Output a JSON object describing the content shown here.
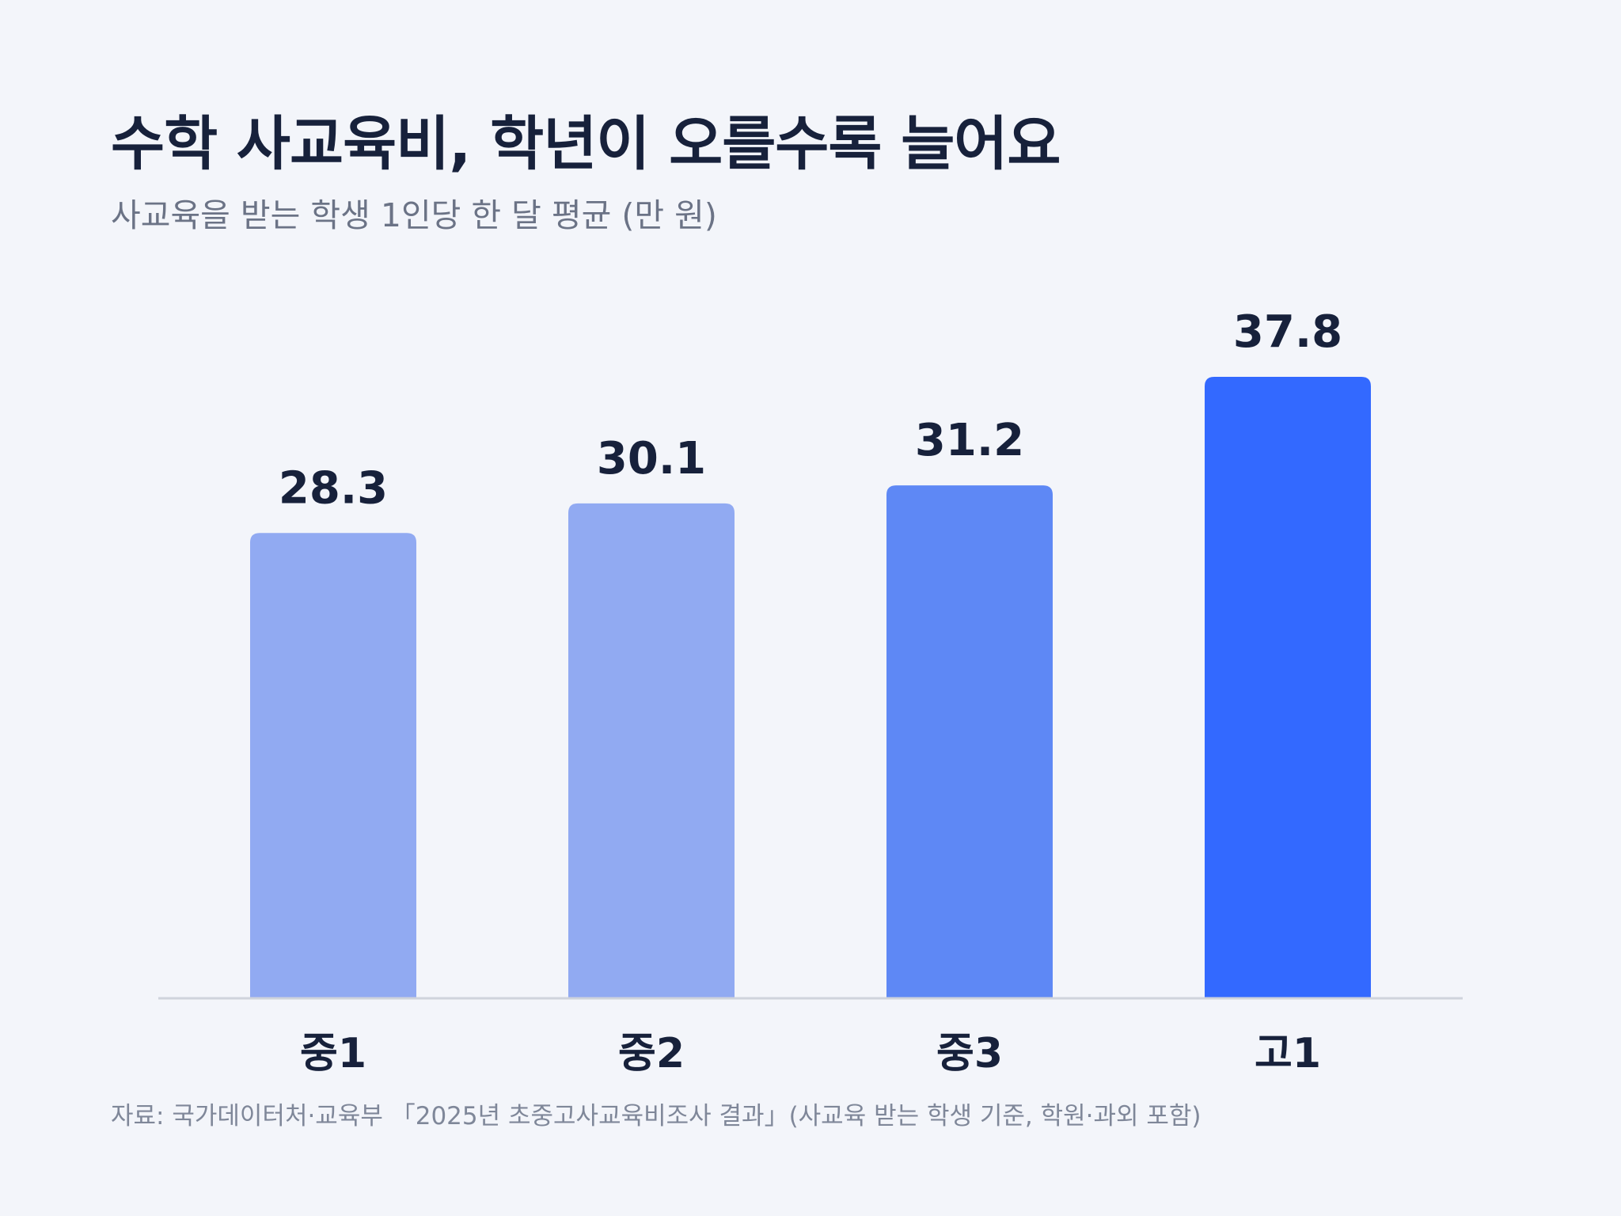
{
  "chart_data": {
    "type": "bar",
    "title": "수학 사교육비, 학년이 오를수록 늘어요",
    "subtitle": "사교육을 받는 학생 1인당 한 달 평균 (만 원)",
    "categories": [
      "중1",
      "중2",
      "중3",
      "고1"
    ],
    "values": [
      28.3,
      30.1,
      31.2,
      37.8
    ],
    "value_labels": [
      "28.3",
      "30.1",
      "31.2",
      "37.8"
    ],
    "colors": [
      "#91aaf2",
      "#91aaf2",
      "#5e88f5",
      "#3369ff"
    ],
    "ylim": [
      0,
      37.8
    ],
    "grid": false,
    "legend": "none",
    "source": "자료: 국가데이터처·교육부 「2025년 초중고사교육비조사 결과」(사교육 받는 학생 기준, 학원·과외 포함)"
  },
  "colors": {
    "background": "#f3f5fa",
    "text": "#17213b",
    "muted": "#6b7386",
    "axis": "#cfd3dc"
  }
}
